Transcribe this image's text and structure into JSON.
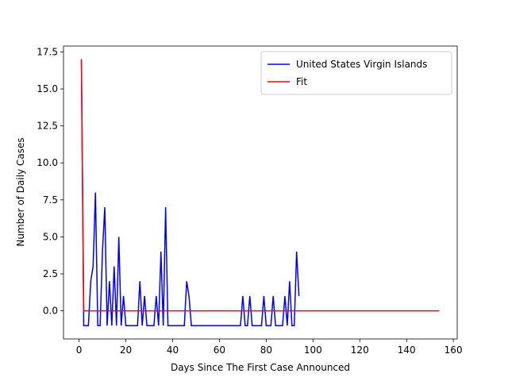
{
  "chart_data": {
    "type": "line",
    "xlabel": "Days Since The First Case Announced",
    "ylabel": "Number of Daily Cases",
    "xlim": [
      -6.65,
      161.65
    ],
    "ylim": [
      -1.9,
      17.9
    ],
    "xticks": [
      0,
      20,
      40,
      60,
      80,
      100,
      120,
      140,
      160
    ],
    "yticks": [
      {
        "value": 0,
        "label": "0.0"
      },
      {
        "value": 2.5,
        "label": "2.5"
      },
      {
        "value": 5,
        "label": "5.0"
      },
      {
        "value": 7.5,
        "label": "7.5"
      },
      {
        "value": 10,
        "label": "10.0"
      },
      {
        "value": 12.5,
        "label": "12.5"
      },
      {
        "value": 15,
        "label": "15.0"
      },
      {
        "value": 17.5,
        "label": "17.5"
      }
    ],
    "legend": "upper right",
    "grid": false,
    "series": [
      {
        "name": "United States Virgin Islands",
        "color": "#0000ff",
        "x": [
          1,
          2,
          3,
          4,
          5,
          6,
          7,
          8,
          9,
          10,
          11,
          12,
          13,
          14,
          15,
          16,
          17,
          18,
          19,
          20,
          21,
          22,
          23,
          24,
          25,
          26,
          27,
          28,
          29,
          30,
          31,
          32,
          33,
          34,
          35,
          36,
          37,
          38,
          39,
          40,
          41,
          42,
          43,
          44,
          45,
          46,
          47,
          48,
          49,
          50,
          51,
          52,
          53,
          54,
          55,
          56,
          57,
          58,
          59,
          60,
          61,
          62,
          63,
          64,
          65,
          66,
          67,
          68,
          69,
          70,
          71,
          72,
          73,
          74,
          75,
          76,
          77,
          78,
          79,
          80,
          81,
          82,
          83,
          84,
          85,
          86,
          87,
          88,
          89,
          90,
          91,
          92,
          93,
          94
        ],
        "values": [
          17,
          -1,
          -1,
          -1,
          2,
          3,
          8,
          -1,
          -1,
          4,
          7,
          -1,
          2,
          -1,
          3,
          -1,
          5,
          -1,
          1,
          -1,
          -1,
          -1,
          -1,
          -1,
          -1,
          2,
          -1,
          1,
          -1,
          -1,
          -1,
          -1,
          1,
          -1,
          4,
          -1,
          7,
          -1,
          -1,
          -1,
          -1,
          -1,
          -1,
          -1,
          -1,
          2,
          1,
          -1,
          -1,
          -1,
          -1,
          -1,
          -1,
          -1,
          -1,
          -1,
          -1,
          -1,
          -1,
          -1,
          -1,
          -1,
          -1,
          -1,
          -1,
          -1,
          -1,
          -1,
          -1,
          1,
          -1,
          -1,
          1,
          -1,
          -1,
          -1,
          -1,
          -1,
          1,
          -1,
          -1,
          -1,
          1,
          -1,
          -1,
          -1,
          -1,
          1,
          -1,
          2,
          -1,
          -1,
          4,
          1
        ]
      },
      {
        "name": "Fit",
        "color": "#ff0000",
        "x": [
          1,
          2,
          154
        ],
        "values": [
          17,
          0,
          0
        ]
      }
    ]
  }
}
